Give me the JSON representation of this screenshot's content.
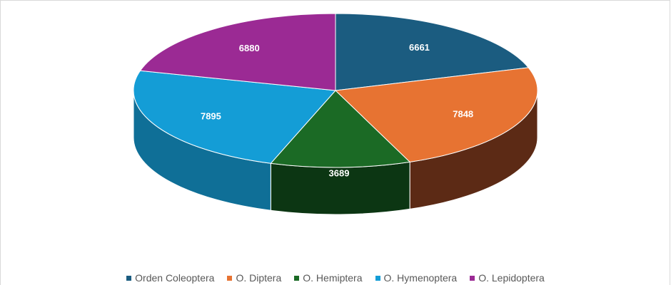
{
  "chart_data": {
    "type": "pie",
    "title": "",
    "categories": [
      "Orden Coleoptera",
      "O. Diptera",
      "O. Hemiptera",
      "O. Hymenoptera",
      "O. Lepidoptera"
    ],
    "values": [
      6661,
      7848,
      3689,
      7895,
      6880
    ],
    "colors": [
      "#1b5c80",
      "#e77332",
      "#1b6a25",
      "#149dd6",
      "#9b2a94"
    ],
    "side_colors": [
      "#123f58",
      "#5c2a15",
      "#0c3613",
      "#0f6f97",
      "#6a1d66"
    ],
    "style": "3d",
    "legend_position": "bottom",
    "data_labels": true
  }
}
